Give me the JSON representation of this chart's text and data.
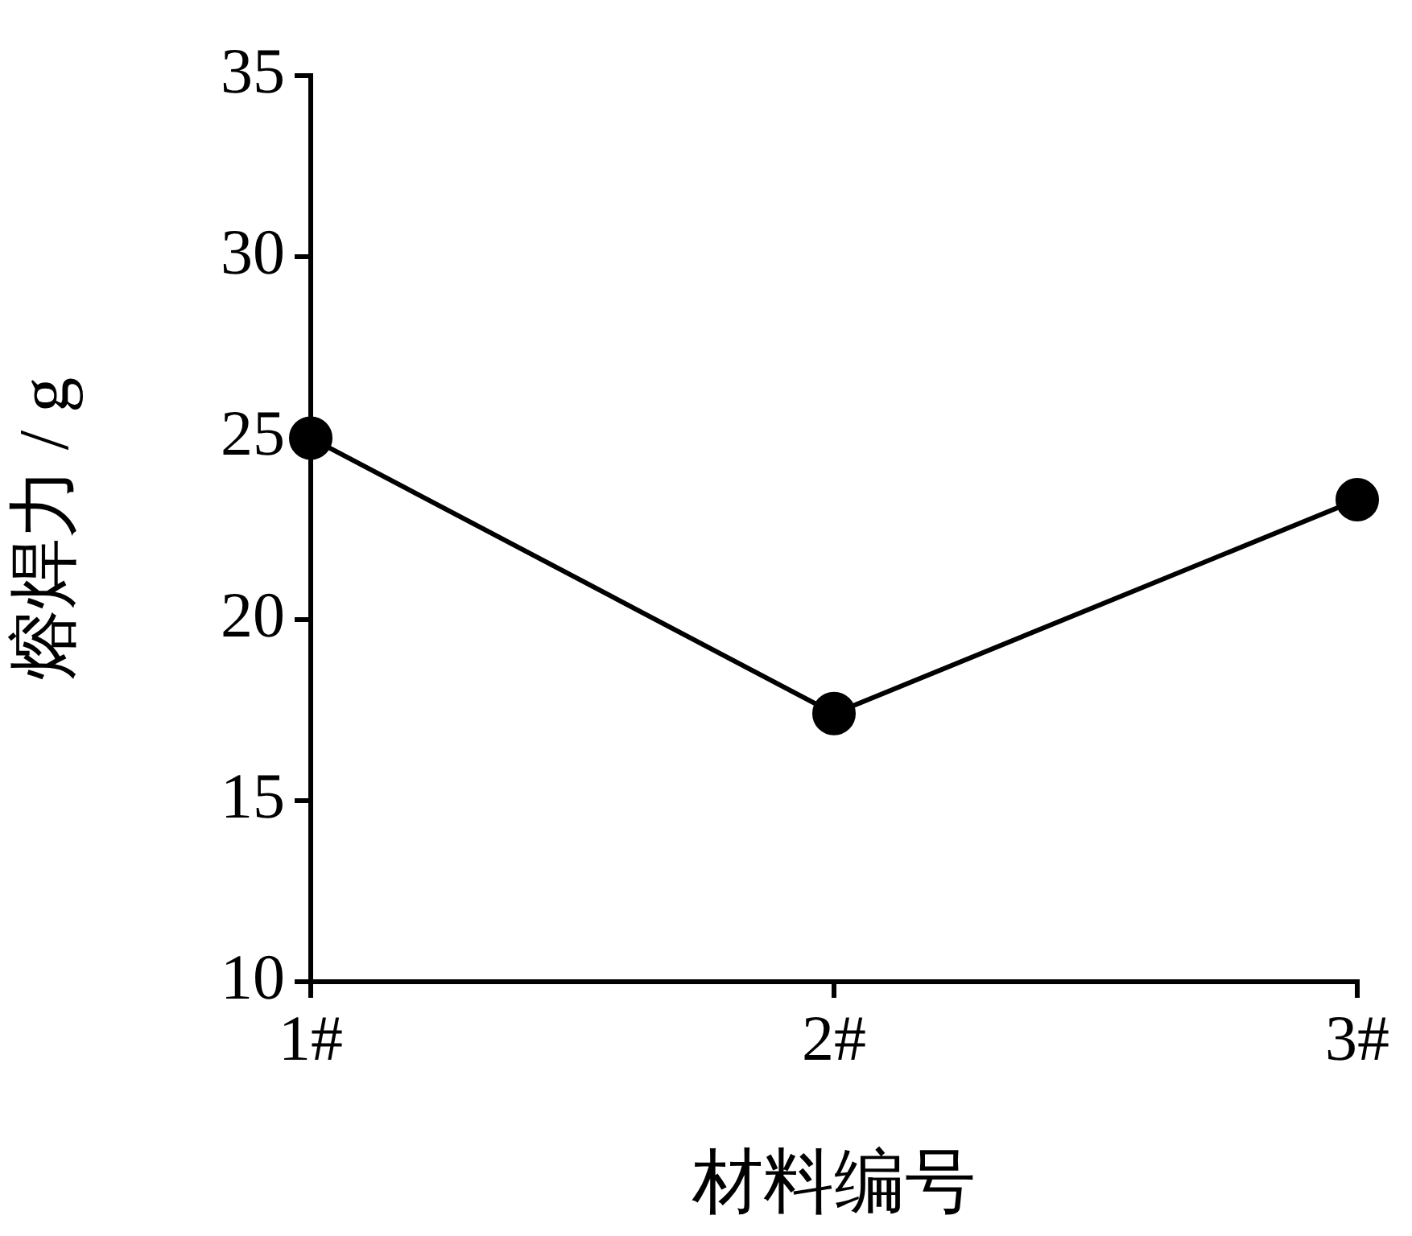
{
  "chart_data": {
    "type": "line",
    "xlabel": "材料编号",
    "ylabel": "熔焊力 / g",
    "categories": [
      "1#",
      "2#",
      "3#"
    ],
    "series": [
      {
        "color": "#000000",
        "values": [
          25.0,
          17.4,
          23.3
        ]
      }
    ],
    "ylim": [
      10,
      35
    ],
    "yticks": [
      10,
      15,
      20,
      25,
      30,
      35
    ],
    "grid": false,
    "legend": false,
    "marker": "circle",
    "line_style": "solid"
  }
}
